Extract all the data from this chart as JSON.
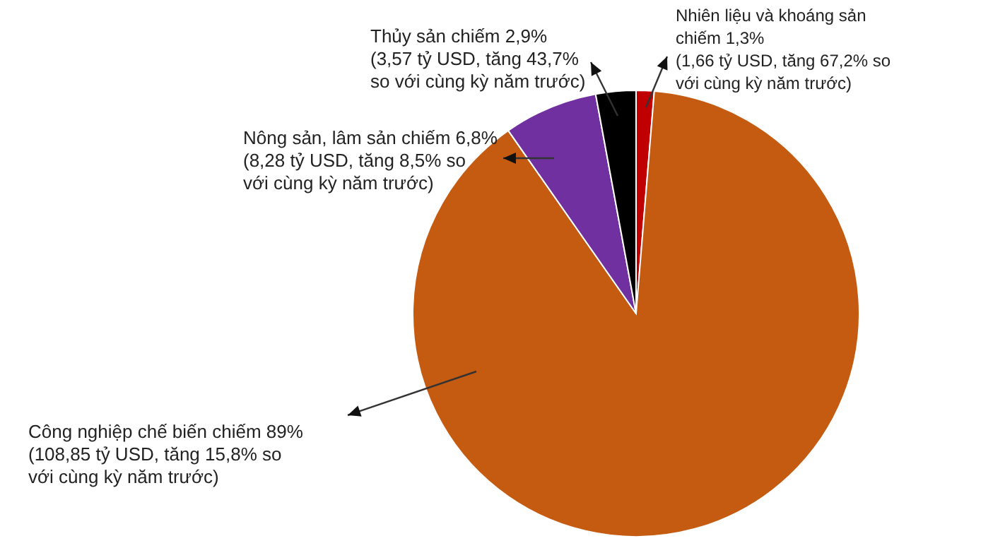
{
  "chart_data": {
    "type": "pie",
    "categories": [
      "Nhiên liệu và khoáng sản chiếm 1,3% (1,66 tỷ USD, tăng 67,2% so với cùng kỳ năm trước)",
      "Công nghiệp chế biến chiếm 89% (108,85 tỷ USD, tăng 15,8% so với cùng kỳ năm trước)",
      "Nông sản, lâm sản chiếm 6,8% (8,28 tỷ USD, tăng 8,5% so với cùng kỳ năm trước)",
      "Thủy sản chiếm 2,9% (3,57 tỷ USD, tăng 43,7% so với cùng kỳ năm trước)"
    ],
    "values": [
      1.3,
      89,
      6.8,
      2.9
    ],
    "colors": [
      "#c00000",
      "#c55a11",
      "#7030a0",
      "#000000"
    ]
  }
}
